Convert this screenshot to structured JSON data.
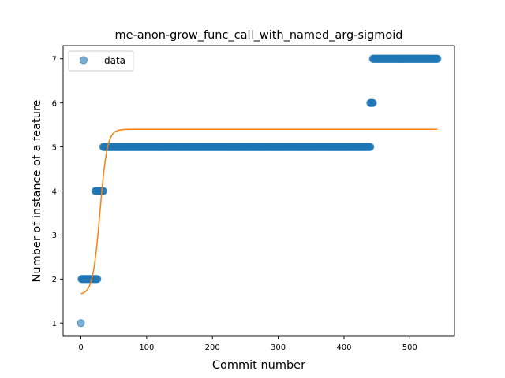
{
  "chart_data": {
    "type": "scatter",
    "title": "me-anon-grow_func_call_with_named_arg-sigmoid",
    "xlabel": "Commit number",
    "ylabel": "Number of instance of a feature",
    "xlim": [
      -27,
      568
    ],
    "ylim": [
      0.7,
      7.3
    ],
    "xticks": [
      0,
      100,
      200,
      300,
      400,
      500
    ],
    "yticks": [
      1,
      2,
      3,
      4,
      5,
      6,
      7
    ],
    "grid": false,
    "legend": {
      "placement": "top-left",
      "entries": [
        "data"
      ]
    },
    "colors": {
      "data": "#1f77b4",
      "fit": "#ff7f0e"
    },
    "series": [
      {
        "name": "data",
        "kind": "points",
        "segments": [
          {
            "x_start": 0,
            "x_end": 0,
            "value": 1
          },
          {
            "x_start": 1,
            "x_end": 25,
            "value": 2
          },
          {
            "x_start": 22,
            "x_end": 34,
            "value": 4
          },
          {
            "x_start": 34,
            "x_end": 440,
            "value": 5
          },
          {
            "x_start": 440,
            "x_end": 444,
            "value": 6
          },
          {
            "x_start": 444,
            "x_end": 542,
            "value": 7
          }
        ]
      },
      {
        "kind": "line",
        "model": "sigmoid",
        "params": {
          "lower": 1.65,
          "upper": 5.4,
          "midpoint": 29,
          "scale": 5.5
        },
        "x_range": [
          0,
          542
        ]
      }
    ]
  }
}
